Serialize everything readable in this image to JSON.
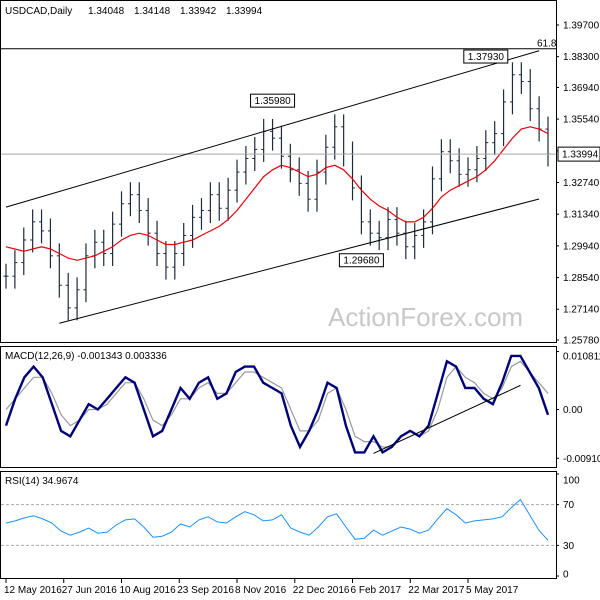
{
  "header": {
    "symbol": "USDCAD,Daily",
    "ohlc": [
      "1.34048",
      "1.34148",
      "1.33942",
      "1.33994"
    ]
  },
  "watermark": "ActionForex.com",
  "colors": {
    "price": "#1c2b3a",
    "ma": "#e8000b",
    "macd": "#00007a",
    "signal": "#9a9a9a",
    "rsi": "#1e90ff",
    "level": "#a9a9a9",
    "trend": "#000000"
  },
  "chart_data": [
    {
      "type": "line",
      "panel": "price",
      "title": "USDCAD,Daily",
      "price_ticks": [
        "1.39700",
        "1.38300",
        "1.36940",
        "1.35540",
        "1.34140",
        "1.32740",
        "1.31340",
        "1.29940",
        "1.28540",
        "1.27140",
        "1.25780"
      ],
      "current_price": "1.33994",
      "fib_label": "61.8",
      "fib_level": 1.3865,
      "ylim": [
        1.2578,
        1.4045
      ],
      "annotations": [
        {
          "label": "1.35980",
          "date_index": 30,
          "value": 1.3598
        },
        {
          "label": "1.37930",
          "date_index": 54,
          "value": 1.3793
        },
        {
          "label": "1.29680",
          "date_index": 40,
          "value": 1.2968
        }
      ],
      "channel": {
        "upper": [
          [
            0,
            1.3165
          ],
          [
            60,
            1.3856
          ]
        ],
        "lower": [
          [
            6,
            1.2652
          ],
          [
            60,
            1.3201
          ]
        ]
      },
      "series": [
        {
          "values": [
            1.286,
            1.292,
            1.302,
            1.31,
            1.306,
            1.295,
            1.282,
            1.272,
            1.28,
            1.295,
            1.301,
            1.296,
            1.309,
            1.318,
            1.322,
            1.315,
            1.305,
            1.296,
            1.29,
            1.296,
            1.304,
            1.312,
            1.315,
            1.322,
            1.316,
            1.324,
            1.332,
            1.338,
            1.342,
            1.35,
            1.347,
            1.339,
            1.333,
            1.327,
            1.32,
            1.332,
            1.343,
            1.352,
            1.34,
            1.325,
            1.31,
            1.305,
            1.303,
            1.311,
            1.305,
            1.299,
            1.304,
            1.31,
            1.329,
            1.341,
            1.337,
            1.331,
            1.333,
            1.338,
            1.345,
            1.349,
            1.363,
            1.375,
            1.372,
            1.36,
            1.351,
            1.34
          ]
        },
        {
          "values": [
            1.299,
            1.298,
            1.297,
            1.298,
            1.299,
            1.298,
            1.296,
            1.294,
            1.293,
            1.294,
            1.295,
            1.297,
            1.299,
            1.302,
            1.304,
            1.305,
            1.304,
            1.302,
            1.3,
            1.3,
            1.301,
            1.302,
            1.304,
            1.306,
            1.308,
            1.311,
            1.315,
            1.32,
            1.325,
            1.33,
            1.333,
            1.335,
            1.334,
            1.332,
            1.33,
            1.331,
            1.334,
            1.335,
            1.333,
            1.329,
            1.324,
            1.32,
            1.317,
            1.315,
            1.312,
            1.31,
            1.31,
            1.312,
            1.316,
            1.321,
            1.324,
            1.326,
            1.328,
            1.33,
            1.333,
            1.337,
            1.342,
            1.347,
            1.351,
            1.352,
            1.351,
            1.349
          ]
        }
      ]
    },
    {
      "type": "line",
      "panel": "macd",
      "title": "MACD(12,26,9) -0.001343 0.003336",
      "y_ticks": [
        "0.010811",
        "0.00",
        "-0.009107"
      ],
      "ylim": [
        -0.0098,
        0.0111
      ],
      "trendline": [
        [
          40,
          -0.0082
        ],
        [
          56,
          0.0045
        ]
      ],
      "series": [
        {
          "values": [
            -0.003,
            0.002,
            0.006,
            0.008,
            0.006,
            0.001,
            -0.004,
            -0.005,
            -0.002,
            0.001,
            0.0,
            0.002,
            0.004,
            0.006,
            0.005,
            0.0,
            -0.005,
            -0.004,
            0.0,
            0.004,
            0.002,
            0.005,
            0.006,
            0.002,
            0.003,
            0.007,
            0.008,
            0.008,
            0.005,
            0.004,
            0.003,
            -0.003,
            -0.007,
            -0.004,
            0.0,
            0.005,
            0.004,
            -0.003,
            -0.008,
            -0.008,
            -0.005,
            -0.008,
            -0.007,
            -0.005,
            -0.004,
            -0.005,
            -0.003,
            0.003,
            0.009,
            0.008,
            0.004,
            0.004,
            0.002,
            0.001,
            0.005,
            0.01,
            0.01,
            0.007,
            0.004,
            -0.001
          ]
        },
        {
          "values": [
            0.0,
            0.002,
            0.004,
            0.006,
            0.006,
            0.003,
            -0.001,
            -0.003,
            -0.002,
            0.0,
            0.0,
            0.001,
            0.003,
            0.005,
            0.005,
            0.002,
            -0.002,
            -0.003,
            -0.001,
            0.002,
            0.002,
            0.004,
            0.005,
            0.003,
            0.003,
            0.005,
            0.007,
            0.007,
            0.006,
            0.005,
            0.004,
            0.0,
            -0.004,
            -0.004,
            -0.002,
            0.003,
            0.004,
            0.0,
            -0.005,
            -0.006,
            -0.006,
            -0.007,
            -0.007,
            -0.005,
            -0.004,
            -0.005,
            -0.004,
            0.0,
            0.006,
            0.008,
            0.006,
            0.005,
            0.003,
            0.002,
            0.004,
            0.008,
            0.009,
            0.007,
            0.005,
            0.003
          ]
        }
      ]
    },
    {
      "type": "line",
      "panel": "rsi",
      "title": "RSI(14) 34.9674",
      "y_ticks": [
        "100",
        "70",
        "30",
        "0"
      ],
      "ylim": [
        0,
        100
      ],
      "levels": [
        70,
        30
      ],
      "series": [
        {
          "values": [
            52,
            54,
            57,
            59,
            56,
            52,
            44,
            40,
            43,
            47,
            42,
            43,
            50,
            55,
            56,
            48,
            38,
            39,
            43,
            51,
            48,
            55,
            58,
            53,
            52,
            58,
            63,
            60,
            54,
            55,
            60,
            47,
            43,
            40,
            48,
            58,
            61,
            48,
            36,
            37,
            45,
            40,
            44,
            48,
            46,
            42,
            45,
            56,
            66,
            60,
            52,
            54,
            55,
            56,
            58,
            67,
            75,
            60,
            45,
            35
          ]
        }
      ]
    }
  ],
  "x_axis": {
    "labels": [
      "12 May 2016",
      "27 Jun 2016",
      "10 Aug 2016",
      "23 Sep 2016",
      "8 Nov 2016",
      "22 Dec 2016",
      "6 Feb 2017",
      "22 Mar 2017",
      "5 May 2017"
    ],
    "label_index": [
      0,
      6.5,
      13,
      19.5,
      26,
      32.5,
      39,
      45.5,
      52
    ]
  }
}
